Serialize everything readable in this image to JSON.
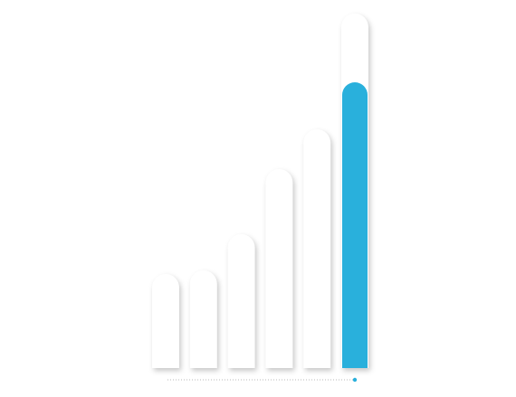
{
  "chart_data": {
    "type": "bar",
    "ylim": [
      0,
      100
    ],
    "series": [
      {
        "color": "#ffffff",
        "values": [
          26,
          27,
          37,
          55,
          66,
          98
        ]
      },
      {
        "color": "#29b0dc",
        "values": [
          null,
          null,
          null,
          null,
          null,
          79
        ]
      }
    ]
  }
}
